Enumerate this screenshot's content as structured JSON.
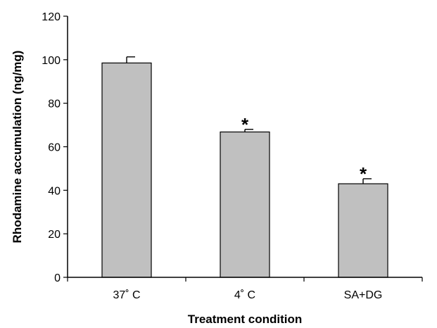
{
  "chart_data": {
    "type": "bar",
    "title": "",
    "xlabel": "Treatment condition",
    "ylabel": "Rhodamine accumulation (ng/mg)",
    "ylim": [
      0,
      120
    ],
    "yticks": [
      0,
      20,
      40,
      60,
      80,
      100,
      120
    ],
    "categories": [
      "37˚ C",
      "4˚ C",
      "SA+DG"
    ],
    "values": [
      98.5,
      66.8,
      43.0
    ],
    "errors": [
      2.8,
      1.2,
      2.3
    ],
    "annotations": [
      "",
      "*",
      "*"
    ],
    "grid": false,
    "legend": "none",
    "colors": {
      "bar": "#c0c0c0",
      "edge": "#000000"
    }
  }
}
